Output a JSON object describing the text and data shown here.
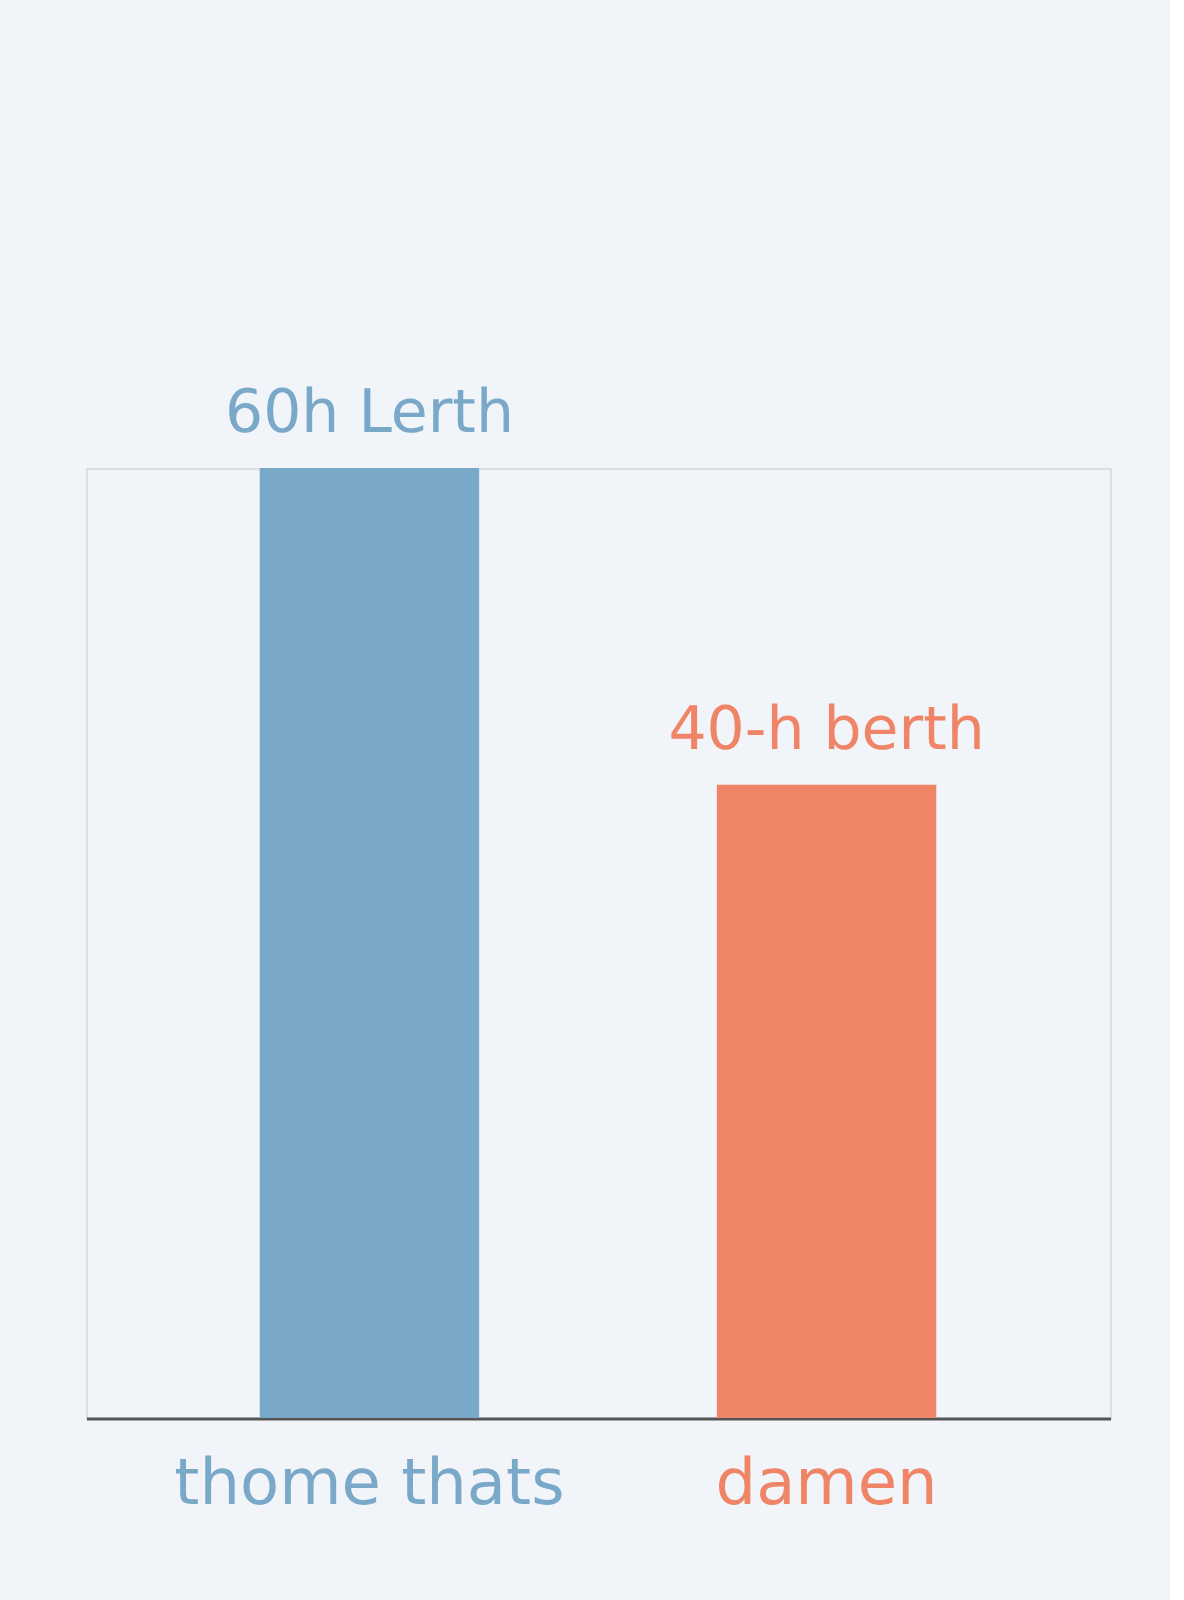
{
  "chart_data": {
    "type": "bar",
    "categories": [
      "thome thats",
      "damen"
    ],
    "values": [
      60,
      40
    ],
    "colors": [
      "#7aa8c9",
      "#f08466"
    ],
    "value_labels": [
      "60h Lerth",
      "40-h berth"
    ],
    "grid": false
  }
}
